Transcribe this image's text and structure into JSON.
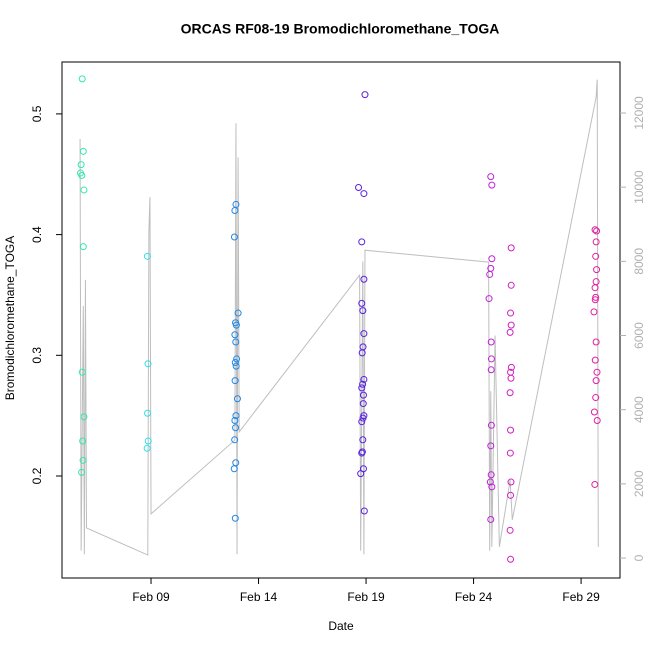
{
  "chart_data": {
    "type": "scatter",
    "title": "ORCAS RF08-19 Bromodichloromethane_TOGA",
    "xlabel": "Date",
    "ylabel": "Bromodichloromethane_TOGA",
    "xlim": [
      4.86,
      30.81
    ],
    "ylim": [
      0.1155,
      0.543
    ],
    "y2lim": [
      -539,
      13375
    ],
    "xticks": [
      {
        "value": 9,
        "label": "Feb 09"
      },
      {
        "value": 14,
        "label": "Feb 14"
      },
      {
        "value": 19,
        "label": "Feb 19"
      },
      {
        "value": 24,
        "label": "Feb 24"
      },
      {
        "value": 29,
        "label": "Feb 29"
      }
    ],
    "yticks": [
      0.2,
      0.3,
      0.4,
      0.5
    ],
    "y2ticks": [
      0,
      2000,
      4000,
      6000,
      8000,
      10000,
      12000
    ],
    "series": [
      {
        "type": "line",
        "axis": "y2",
        "color": "#bebebe",
        "x": [
          5.7,
          5.75,
          5.85,
          5.9,
          5.95,
          6.0,
          8.85,
          8.9,
          8.95,
          9.0,
          12.9,
          12.95,
          13.0,
          13.05,
          13.1,
          18.7,
          18.75,
          18.85,
          18.9,
          18.95,
          24.7,
          24.75,
          24.8,
          24.85,
          25.0,
          25.2,
          25.7,
          25.8,
          29.7,
          29.75,
          29.8
        ],
        "values": [
          11300,
          200,
          6800,
          100,
          7500,
          810,
          80,
          8790,
          9730,
          1190,
          3180,
          11720,
          100,
          10800,
          3400,
          7630,
          200,
          8000,
          100,
          8300,
          7980,
          200,
          4500,
          300,
          6000,
          300,
          2100,
          1030,
          12430,
          12900,
          300
        ]
      },
      {
        "color": "#30e8b0",
        "x": [
          5.8,
          5.85,
          5.75,
          5.72,
          5.78,
          5.88,
          5.85,
          5.8,
          5.88,
          5.82,
          5.84,
          5.77
        ],
        "values": [
          0.529,
          0.469,
          0.458,
          0.451,
          0.449,
          0.437,
          0.39,
          0.286,
          0.249,
          0.229,
          0.213,
          0.203
        ]
      },
      {
        "color": "#30e0e8",
        "x": [
          8.83,
          8.86,
          8.84,
          8.87,
          8.82
        ],
        "values": [
          0.382,
          0.293,
          0.252,
          0.229,
          0.223
        ]
      },
      {
        "color": "#2088e8",
        "x": [
          12.95,
          12.9,
          12.88,
          13.05,
          12.93,
          12.97,
          12.9,
          12.94,
          12.98,
          12.92,
          12.96,
          12.91,
          13.02,
          12.95,
          12.9,
          12.93,
          12.89,
          12.94,
          12.87,
          12.92
        ],
        "values": [
          0.425,
          0.42,
          0.398,
          0.335,
          0.327,
          0.325,
          0.317,
          0.311,
          0.297,
          0.294,
          0.291,
          0.279,
          0.264,
          0.25,
          0.246,
          0.24,
          0.23,
          0.211,
          0.206,
          0.165
        ]
      },
      {
        "color": "#5a20e0",
        "x": [
          18.95,
          18.65,
          18.9,
          18.8,
          18.9,
          18.8,
          18.85,
          18.9,
          18.86,
          18.82,
          18.9,
          18.84,
          18.8,
          18.88,
          18.87,
          18.9,
          18.86,
          18.8,
          18.85,
          18.83,
          18.8,
          18.88,
          18.75,
          18.92
        ],
        "values": [
          0.516,
          0.439,
          0.434,
          0.394,
          0.363,
          0.343,
          0.337,
          0.318,
          0.307,
          0.302,
          0.28,
          0.276,
          0.273,
          0.267,
          0.26,
          0.25,
          0.248,
          0.245,
          0.23,
          0.22,
          0.219,
          0.206,
          0.202,
          0.171
        ]
      },
      {
        "color": "#c020d8",
        "x": [
          24.8,
          24.85,
          24.85,
          24.8,
          24.75,
          24.72,
          24.82,
          24.83,
          24.82,
          24.83,
          24.8,
          24.82,
          24.78,
          24.85,
          24.8
        ],
        "values": [
          0.448,
          0.441,
          0.38,
          0.372,
          0.367,
          0.347,
          0.311,
          0.297,
          0.288,
          0.242,
          0.225,
          0.201,
          0.195,
          0.191,
          0.164
        ]
      },
      {
        "color": "#d020c0",
        "x": [
          25.75,
          25.75,
          25.72,
          25.75,
          25.7,
          25.76,
          25.72,
          25.74,
          25.7,
          25.72,
          25.71,
          25.74,
          25.72,
          25.7,
          25.72
        ],
        "values": [
          0.389,
          0.358,
          0.335,
          0.325,
          0.319,
          0.29,
          0.286,
          0.281,
          0.269,
          0.238,
          0.219,
          0.195,
          0.184,
          0.155,
          0.131
        ]
      },
      {
        "color": "#e020a0",
        "x": [
          29.65,
          29.72,
          29.7,
          29.68,
          29.72,
          29.7,
          29.65,
          29.68,
          29.66,
          29.6,
          29.7,
          29.66,
          29.74,
          29.7,
          29.68,
          29.62,
          29.75,
          29.64
        ],
        "values": [
          0.404,
          0.403,
          0.394,
          0.382,
          0.371,
          0.361,
          0.356,
          0.348,
          0.346,
          0.336,
          0.311,
          0.296,
          0.286,
          0.279,
          0.265,
          0.253,
          0.246,
          0.193
        ]
      }
    ]
  }
}
